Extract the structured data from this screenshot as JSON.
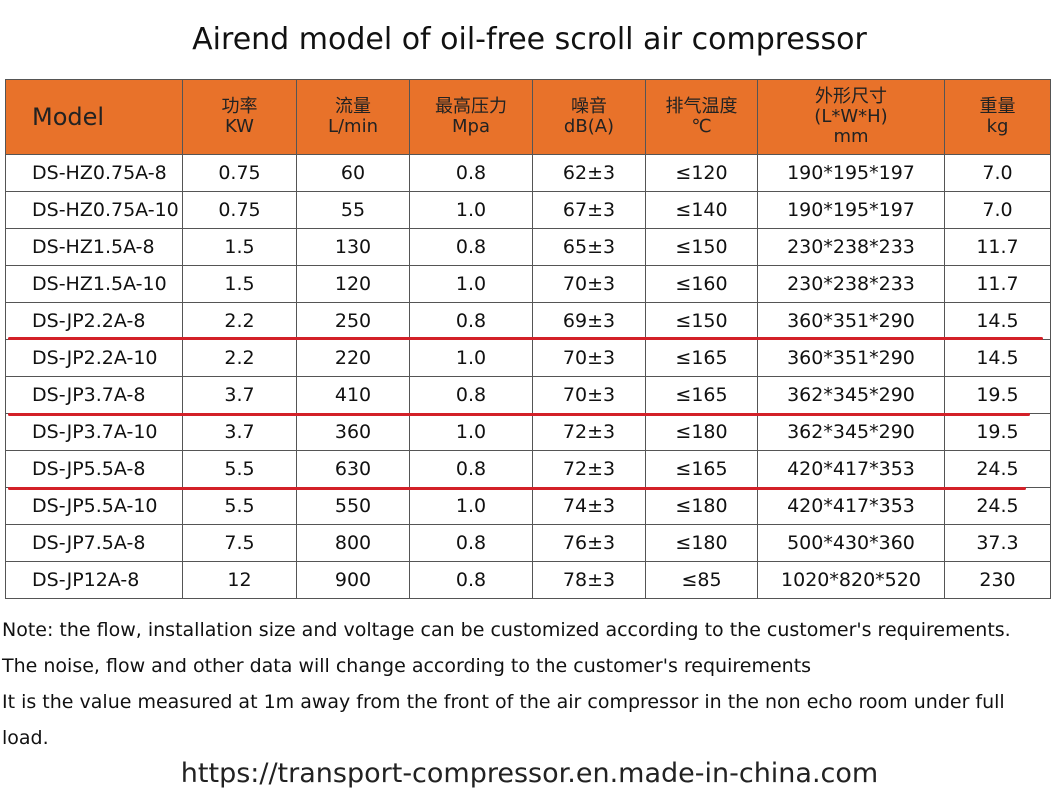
{
  "title": "Airend model of oil-free scroll air compressor",
  "headers": [
    {
      "l1": "Model",
      "l2": ""
    },
    {
      "l1": "功率",
      "l2": "KW"
    },
    {
      "l1": "流量",
      "l2": "L/min"
    },
    {
      "l1": "最高压力",
      "l2": "Mpa"
    },
    {
      "l1": "噪音",
      "l2": "dB(A)"
    },
    {
      "l1": "排气温度",
      "l2": "℃"
    },
    {
      "l1": "外形尺寸",
      "l2": "(L*W*H)",
      "l3": "mm"
    },
    {
      "l1": "重量",
      "l2": "kg"
    }
  ],
  "rows": [
    [
      "DS-HZ0.75A-8",
      "0.75",
      "60",
      "0.8",
      "62±3",
      "≤120",
      "190*195*197",
      "7.0"
    ],
    [
      "DS-HZ0.75A-10",
      "0.75",
      "55",
      "1.0",
      "67±3",
      "≤140",
      "190*195*197",
      "7.0"
    ],
    [
      "DS-HZ1.5A-8",
      "1.5",
      "130",
      "0.8",
      "65±3",
      "≤150",
      "230*238*233",
      "11.7"
    ],
    [
      "DS-HZ1.5A-10",
      "1.5",
      "120",
      "1.0",
      "70±3",
      "≤160",
      "230*238*233",
      "11.7"
    ],
    [
      "DS-JP2.2A-8",
      "2.2",
      "250",
      "0.8",
      "69±3",
      "≤150",
      "360*351*290",
      "14.5"
    ],
    [
      "DS-JP2.2A-10",
      "2.2",
      "220",
      "1.0",
      "70±3",
      "≤165",
      "360*351*290",
      "14.5"
    ],
    [
      "DS-JP3.7A-8",
      "3.7",
      "410",
      "0.8",
      "70±3",
      "≤165",
      "362*345*290",
      "19.5"
    ],
    [
      "DS-JP3.7A-10",
      "3.7",
      "360",
      "1.0",
      "72±3",
      "≤180",
      "362*345*290",
      "19.5"
    ],
    [
      "DS-JP5.5A-8",
      "5.5",
      "630",
      "0.8",
      "72±3",
      "≤165",
      "420*417*353",
      "24.5"
    ],
    [
      "DS-JP5.5A-10",
      "5.5",
      "550",
      "1.0",
      "74±3",
      "≤180",
      "420*417*353",
      "24.5"
    ],
    [
      "DS-JP7.5A-8",
      "7.5",
      "800",
      "0.8",
      "76±3",
      "≤180",
      "500*430*360",
      "37.3"
    ],
    [
      "DS-JP12A-8",
      "12",
      "900",
      "0.8",
      "78±3",
      "≤85",
      "1020*820*520",
      "230"
    ]
  ],
  "notes": [
    "Note: the flow, installation size and voltage can be customized according to the customer's requirements.",
    "The noise, flow and other data will change according to the customer's requirements",
    "It is the value measured at 1m away from the front of the air compressor in the non echo room under full load."
  ],
  "url": "https://transport-compressor.en.made-in-china.com",
  "colors": {
    "header_bg": "#e8722a",
    "underline": "#d32028"
  }
}
